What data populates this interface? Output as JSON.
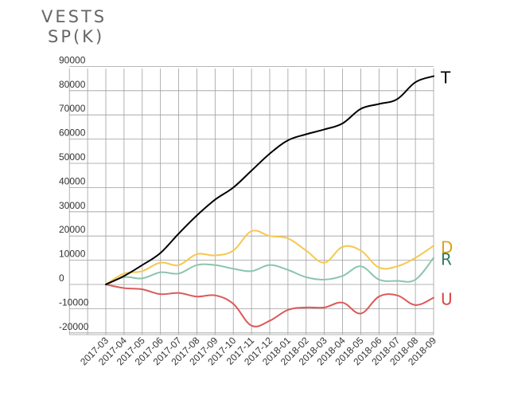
{
  "chart_data": {
    "type": "line",
    "title": [
      "VESTS",
      "SP(K)"
    ],
    "categories": [
      "2017-03",
      "2017-04",
      "2017-05",
      "2017-06",
      "2017-07",
      "2017-08",
      "2017-09",
      "2017-10",
      "2017-11",
      "2017-12",
      "2018-01",
      "2018-02",
      "2018-03",
      "2018-04",
      "2018-05",
      "2018-06",
      "2018-07",
      "2018-08",
      "2018-09"
    ],
    "y_ticks": [
      "90000",
      "80000",
      "70000",
      "60000",
      "50000",
      "40000",
      "30000",
      "20000",
      "10000",
      "0",
      "-10000",
      "-20000"
    ],
    "ylim": [
      -20000,
      90000
    ],
    "grid": true,
    "series": [
      {
        "name": "T",
        "color": "#000000",
        "values": [
          0,
          3500,
          8000,
          13000,
          21000,
          28500,
          35000,
          40000,
          47000,
          54000,
          59500,
          62000,
          64000,
          66500,
          72500,
          74500,
          76500,
          83500,
          86000
        ]
      },
      {
        "name": "D",
        "color": "#f5c84f",
        "label_color": "#d9a414",
        "values": [
          0,
          4500,
          5500,
          9000,
          8000,
          12500,
          12000,
          14000,
          22000,
          20000,
          19000,
          14000,
          9000,
          15500,
          14000,
          7000,
          7500,
          11000,
          16000
        ]
      },
      {
        "name": "R",
        "color": "#8cc5ad",
        "label_color": "#2e7d5b",
        "values": [
          0,
          3000,
          2500,
          5000,
          4500,
          8000,
          8000,
          6500,
          5500,
          8000,
          6000,
          3000,
          2000,
          3500,
          7500,
          2000,
          1500,
          2000,
          11000
        ]
      },
      {
        "name": "U",
        "color": "#dc5a58",
        "label_color": "#d94441",
        "values": [
          0,
          -1500,
          -2000,
          -4000,
          -3500,
          -5000,
          -4500,
          -8000,
          -17000,
          -15000,
          -10500,
          -9500,
          -9500,
          -7500,
          -12000,
          -5000,
          -4500,
          -8500,
          -5500
        ]
      }
    ]
  }
}
